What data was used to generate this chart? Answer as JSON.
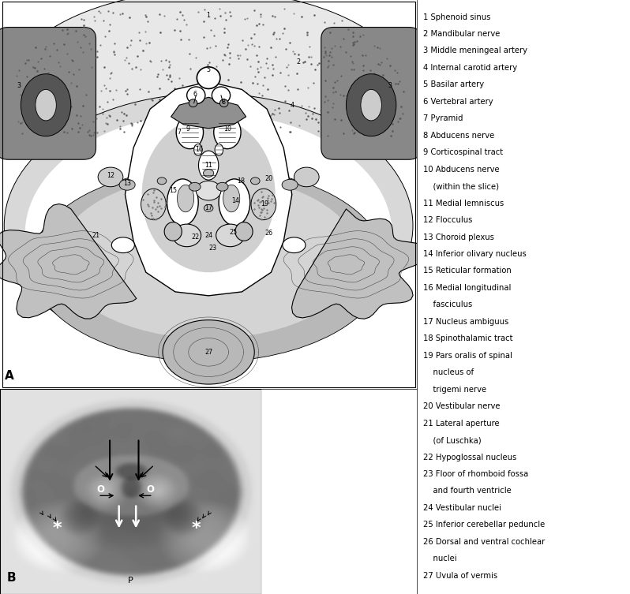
{
  "legend_items": [
    "1 Sphenoid sinus",
    "2 Mandibular nerve",
    "3 Middle meningeal artery",
    "4 Internal carotid artery",
    "5 Basilar artery",
    "6 Vertebral artery",
    "7 Pyramid",
    "8 Abducens nerve",
    "9 Corticospinal tract",
    "10 Abducens nerve",
    "    (within the slice)",
    "11 Medial lemniscus",
    "12 Flocculus",
    "13 Choroid plexus",
    "14 Inferior olivary nucleus",
    "15 Reticular formation",
    "16 Medial longitudinal",
    "    fasciculus",
    "17 Nucleus ambiguus",
    "18 Spinothalamic tract",
    "19 Pars oralis of spinal",
    "    nucleus of",
    "    trigemi nerve",
    "20 Vestibular nerve",
    "21 Lateral aperture",
    "    (of Luschka)",
    "22 Hypoglossal nucleus",
    "23 Floor of rhomboid fossa",
    "    and fourth ventricle",
    "24 Vestibular nuclei",
    "25 Inferior cerebellar peduncle",
    "26 Dorsal and ventral cochlear",
    "    nuclei",
    "27 Uvula of vermis"
  ],
  "bg_color": "#ffffff",
  "text_color": "#000000",
  "legend_fontsize": 7.2,
  "panel_a_label": "A",
  "panel_b_label": "B",
  "panel_b_p_label": "P",
  "fig_width": 7.98,
  "fig_height": 7.53,
  "dpi": 100
}
